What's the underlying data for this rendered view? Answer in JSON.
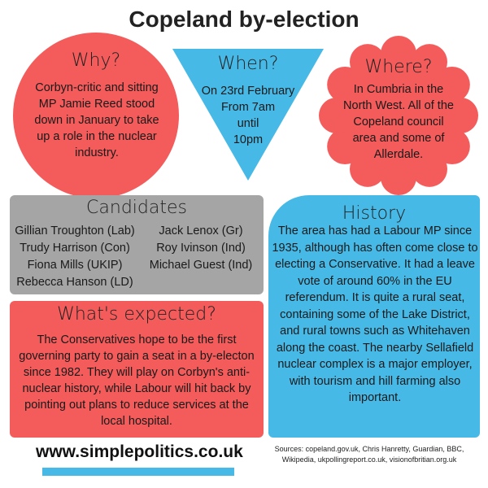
{
  "header": {
    "title": "Copeland by-election"
  },
  "why": {
    "heading": "Why?",
    "text": "Corbyn-critic and sitting MP Jamie Reed stood  down in January to take up a role in the nuclear industry."
  },
  "when": {
    "heading": "When?",
    "lines": [
      "On 23rd February",
      "From 7am",
      "until",
      "10pm"
    ]
  },
  "where": {
    "heading": "Where?",
    "text": "In Cumbria in the North West. All of the Copeland council area and some of Allerdale."
  },
  "candidates": {
    "heading": "Candidates",
    "left": [
      "Gillian Troughton (Lab)",
      "Trudy Harrison (Con)",
      "Fiona Mills (UKIP)",
      "Rebecca Hanson (LD)"
    ],
    "right": [
      "Jack Lenox (Gr)",
      "Roy Ivinson (Ind)",
      "Michael Guest (Ind)"
    ]
  },
  "expected": {
    "heading": "What's expected?",
    "text": "The Conservatives hope to be the first governing party to gain a seat in a by-electon since 1982. They will play on Corbyn's anti-nuclear history, while Labour will hit back by pointing out plans to reduce services at the local hospital."
  },
  "history": {
    "heading": "History",
    "text": "The area has had a Labour MP since 1935, although has often come close to electing a Conservative. It had a leave vote of around 60% in the EU referendum. It is quite a rural seat, containing some of the Lake District, and rural towns such as Whitehaven along the coast. The nearby Sellafield nuclear complex is a major employer, with tourism and hill farming also important."
  },
  "footer": {
    "site": "www.simplepolitics.co.uk",
    "sources": "Sources: copeland.gov.uk, Chris Hanretty, Guardian, BBC, Wikipedia, ukpollingreport.co.uk, visionofbritian.org.uk"
  }
}
